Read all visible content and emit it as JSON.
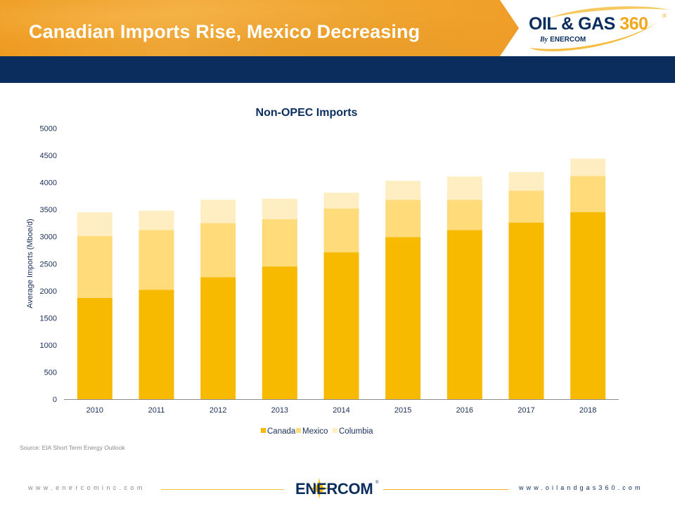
{
  "header": {
    "title": "Canadian Imports Rise, Mexico Decreasing",
    "logo": {
      "main": "OIL & GAS",
      "number": "360",
      "registered": "®",
      "by": "By",
      "company": "ENERCOM"
    }
  },
  "colors": {
    "banner_orange": "#f0a530",
    "navy": "#0b2d5e",
    "canada": "#f7ba00",
    "mexico": "#ffdb79",
    "columbia": "#feeec2"
  },
  "chart_data": {
    "type": "bar",
    "stacked": true,
    "title": "Non-OPEC Imports",
    "xlabel": "",
    "ylabel": "Average Imports (Mboe/d)",
    "ylim": [
      0,
      5000
    ],
    "yticks": [
      "0",
      "500",
      "1000",
      "1500",
      "2000",
      "2500",
      "3000",
      "3500",
      "4000",
      "4500",
      "5000"
    ],
    "ytick_values": [
      0,
      500,
      1000,
      1500,
      2000,
      2500,
      3000,
      3500,
      4000,
      4500,
      5000
    ],
    "grid": false,
    "legend_position": "bottom",
    "categories": [
      "2010",
      "2011",
      "2012",
      "2013",
      "2014",
      "2015",
      "2016",
      "2017",
      "2018"
    ],
    "series": [
      {
        "name": "Canada",
        "color": "#f7ba00",
        "values": [
          1870,
          2020,
          2250,
          2450,
          2710,
          2990,
          3120,
          3260,
          3450
        ]
      },
      {
        "name": "Mexico",
        "color": "#ffdb79",
        "values": [
          1140,
          1100,
          1000,
          870,
          810,
          690,
          560,
          590,
          670
        ]
      },
      {
        "name": "Columbia",
        "color": "#feeec2",
        "values": [
          440,
          360,
          430,
          380,
          290,
          350,
          430,
          340,
          320
        ]
      }
    ]
  },
  "source": "Source: EIA Short Term Energy Outlook",
  "footer": {
    "left_url": "www.enercominc.com",
    "right_url": "www.oilandgas360.com",
    "logo_text": "ENERCOM",
    "logo_registered": "®"
  }
}
